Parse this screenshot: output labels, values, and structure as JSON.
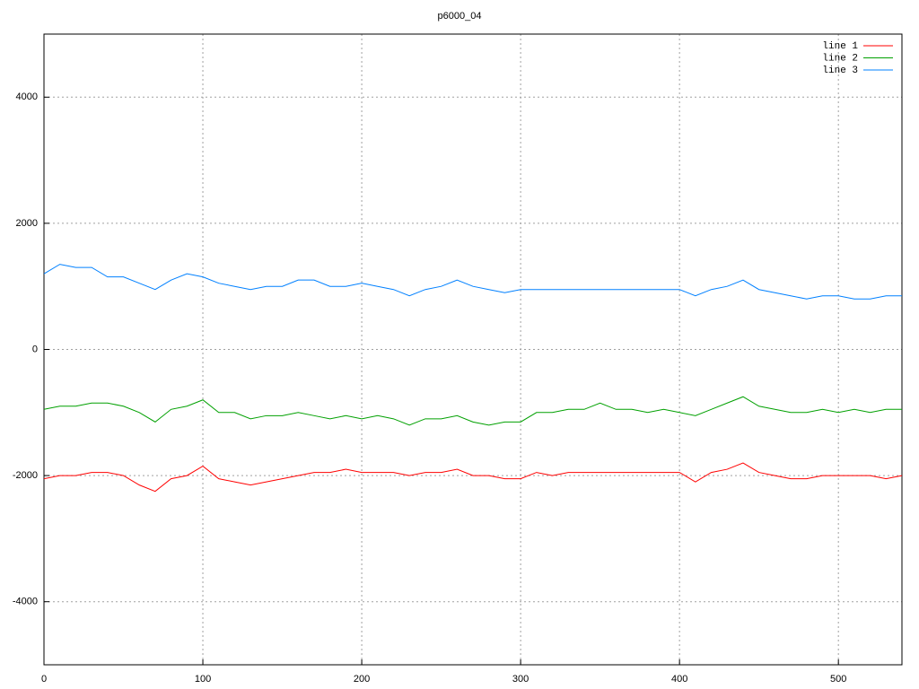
{
  "chart_data": {
    "type": "line",
    "title": "p6000_04",
    "x": [
      0,
      10,
      20,
      30,
      40,
      50,
      60,
      70,
      80,
      90,
      100,
      110,
      120,
      130,
      140,
      150,
      160,
      170,
      180,
      190,
      200,
      210,
      220,
      230,
      240,
      250,
      260,
      270,
      280,
      290,
      300,
      310,
      320,
      330,
      340,
      350,
      360,
      370,
      380,
      390,
      400,
      410,
      420,
      430,
      440,
      450,
      460,
      470,
      480,
      490,
      500,
      510,
      520,
      530,
      540
    ],
    "series": [
      {
        "name": "line 1",
        "color": "#ff0000",
        "values": [
          -2050,
          -2000,
          -2000,
          -1950,
          -1950,
          -2000,
          -2150,
          -2250,
          -2050,
          -2000,
          -1850,
          -2050,
          -2100,
          -2150,
          -2100,
          -2050,
          -2000,
          -1950,
          -1950,
          -1900,
          -1950,
          -1950,
          -1950,
          -2000,
          -1950,
          -1950,
          -1900,
          -2000,
          -2000,
          -2050,
          -2050,
          -1950,
          -2000,
          -1950,
          -1950,
          -1950,
          -1950,
          -1950,
          -1950,
          -1950,
          -1950,
          -2100,
          -1950,
          -1900,
          -1800,
          -1950,
          -2000,
          -2050,
          -2050,
          -2000,
          -2000,
          -2000,
          -2000,
          -2050,
          -2000
        ]
      },
      {
        "name": "line 2",
        "color": "#00a000",
        "values": [
          -950,
          -900,
          -900,
          -850,
          -850,
          -900,
          -1000,
          -1150,
          -950,
          -900,
          -800,
          -1000,
          -1000,
          -1100,
          -1050,
          -1050,
          -1000,
          -1050,
          -1100,
          -1050,
          -1100,
          -1050,
          -1100,
          -1200,
          -1100,
          -1100,
          -1050,
          -1150,
          -1200,
          -1150,
          -1150,
          -1000,
          -1000,
          -950,
          -950,
          -850,
          -950,
          -950,
          -1000,
          -950,
          -1000,
          -1050,
          -950,
          -850,
          -750,
          -900,
          -950,
          -1000,
          -1000,
          -950,
          -1000,
          -950,
          -1000,
          -950,
          -950
        ]
      },
      {
        "name": "line 3",
        "color": "#0080ff",
        "values": [
          1200,
          1350,
          1300,
          1300,
          1150,
          1150,
          1050,
          950,
          1100,
          1200,
          1150,
          1050,
          1000,
          950,
          1000,
          1000,
          1100,
          1100,
          1000,
          1000,
          1050,
          1000,
          950,
          850,
          950,
          1000,
          1100,
          1000,
          950,
          900,
          950,
          950,
          950,
          950,
          950,
          950,
          950,
          950,
          950,
          950,
          950,
          850,
          950,
          1000,
          1100,
          950,
          900,
          850,
          800,
          850,
          850,
          800,
          800,
          850,
          850
        ]
      }
    ],
    "xlim": [
      0,
      540
    ],
    "xticks": [
      0,
      100,
      200,
      300,
      400,
      500
    ],
    "ylim": [
      -5000,
      5000
    ],
    "yticks": [
      -4000,
      -2000,
      0,
      2000,
      4000
    ],
    "grid": true,
    "legend": "top-right"
  }
}
